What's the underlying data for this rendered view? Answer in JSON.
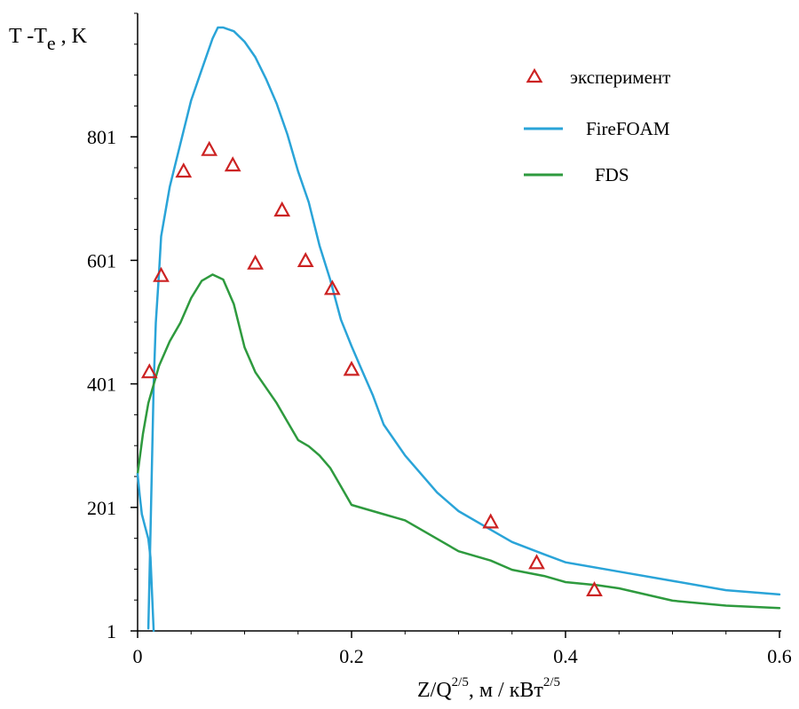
{
  "chart_data": {
    "type": "line",
    "ylabel": {
      "main": "T -T",
      "sub": "e",
      "unit": " , K"
    },
    "xlabel": {
      "base": "Z/Q",
      "exp": "2/5",
      "unit": ", м / кВт",
      "unit_exp": "2/5"
    },
    "xlim": [
      0,
      0.6
    ],
    "ylim": [
      1,
      1001
    ],
    "x_ticks": [
      0,
      0.2,
      0.4,
      0.6
    ],
    "x_tick_labels": [
      "0",
      "0.2",
      "0.4",
      "0.6"
    ],
    "y_ticks": [
      1,
      201,
      401,
      601,
      801
    ],
    "y_tick_labels": [
      "1",
      "201",
      "401",
      "601",
      "801"
    ],
    "grid": false,
    "legend_position": "top-right",
    "series": [
      {
        "name": "эксперимент",
        "kind": "scatter",
        "color": "#cc2222",
        "marker": "triangle-open",
        "x": [
          0.011,
          0.022,
          0.043,
          0.067,
          0.089,
          0.11,
          0.135,
          0.157,
          0.182,
          0.2,
          0.33,
          0.373,
          0.427
        ],
        "y": [
          420,
          576,
          745,
          780,
          755,
          596,
          682,
          600,
          555,
          424,
          177,
          111,
          67
        ]
      },
      {
        "name": "FireFOAM",
        "kind": "line",
        "color": "#2aa4d8",
        "x": [
          0.01,
          0.012,
          0.015,
          0.017,
          0.02,
          0.022,
          0.03,
          0.04,
          0.05,
          0.06,
          0.07,
          0.075,
          0.08,
          0.09,
          0.1,
          0.11,
          0.12,
          0.13,
          0.14,
          0.15,
          0.16,
          0.17,
          0.18,
          0.19,
          0.2,
          0.21,
          0.22,
          0.23,
          0.25,
          0.28,
          0.3,
          0.33,
          0.35,
          0.38,
          0.4,
          0.45,
          0.5,
          0.55,
          0.6
        ],
        "y": [
          5,
          160,
          400,
          500,
          580,
          640,
          720,
          790,
          860,
          910,
          960,
          978,
          978,
          972,
          955,
          930,
          895,
          855,
          805,
          745,
          695,
          625,
          570,
          505,
          462,
          422,
          382,
          335,
          285,
          225,
          195,
          165,
          145,
          125,
          112,
          97,
          82,
          67,
          60
        ]
      },
      {
        "name": "FDS",
        "kind": "line",
        "color": "#2e9a3e",
        "x": [
          0,
          0.005,
          0.01,
          0.02,
          0.03,
          0.04,
          0.05,
          0.06,
          0.07,
          0.08,
          0.09,
          0.1,
          0.11,
          0.12,
          0.13,
          0.14,
          0.15,
          0.16,
          0.17,
          0.18,
          0.19,
          0.2,
          0.21,
          0.22,
          0.23,
          0.24,
          0.25,
          0.27,
          0.3,
          0.33,
          0.35,
          0.38,
          0.4,
          0.43,
          0.45,
          0.5,
          0.55,
          0.6
        ],
        "y": [
          255,
          320,
          370,
          430,
          470,
          500,
          540,
          568,
          578,
          570,
          530,
          460,
          420,
          395,
          370,
          340,
          310,
          300,
          285,
          265,
          235,
          205,
          200,
          195,
          190,
          185,
          180,
          160,
          130,
          115,
          100,
          90,
          80,
          75,
          70,
          50,
          42,
          38
        ]
      }
    ],
    "ff_lower_segment": {
      "x": [
        0,
        0.002,
        0.004,
        0.007,
        0.01,
        0.012,
        0.015
      ],
      "y": [
        255,
        220,
        190,
        170,
        150,
        120,
        1
      ]
    }
  }
}
